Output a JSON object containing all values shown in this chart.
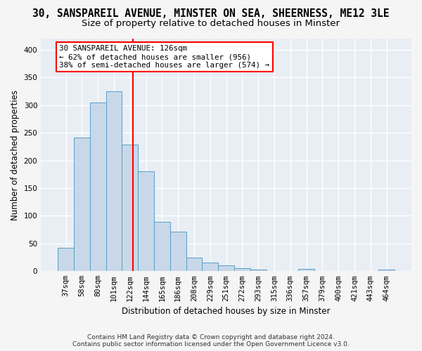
{
  "title_line1": "30, SANSPAREIL AVENUE, MINSTER ON SEA, SHEERNESS, ME12 3LE",
  "title_line2": "Size of property relative to detached houses in Minster",
  "xlabel": "Distribution of detached houses by size in Minster",
  "ylabel": "Number of detached properties",
  "bar_color": "#c8d8e8",
  "bar_edge_color": "#5a9ec8",
  "plot_bg_color": "#e8eef4",
  "grid_color": "#ffffff",
  "categories": [
    "37sqm",
    "58sqm",
    "80sqm",
    "101sqm",
    "122sqm",
    "144sqm",
    "165sqm",
    "186sqm",
    "208sqm",
    "229sqm",
    "251sqm",
    "272sqm",
    "293sqm",
    "315sqm",
    "336sqm",
    "357sqm",
    "379sqm",
    "400sqm",
    "421sqm",
    "443sqm",
    "464sqm"
  ],
  "values": [
    42,
    241,
    305,
    325,
    228,
    180,
    89,
    72,
    25,
    15,
    10,
    5,
    3,
    1,
    1,
    4,
    0,
    0,
    0,
    0,
    3
  ],
  "ylim": [
    0,
    420
  ],
  "yticks": [
    0,
    50,
    100,
    150,
    200,
    250,
    300,
    350,
    400
  ],
  "vline_x": 4.2,
  "ann_line1": "30 SANSPAREIL AVENUE: 126sqm",
  "ann_line2": "← 62% of detached houses are smaller (956)",
  "ann_line3": "38% of semi-detached houses are larger (574) →",
  "footer_line1": "Contains HM Land Registry data © Crown copyright and database right 2024.",
  "footer_line2": "Contains public sector information licensed under the Open Government Licence v3.0.",
  "title_fontsize": 10.5,
  "subtitle_fontsize": 9.5,
  "axis_label_fontsize": 8.5,
  "tick_fontsize": 7.5,
  "annotation_fontsize": 7.8,
  "footer_fontsize": 6.5
}
